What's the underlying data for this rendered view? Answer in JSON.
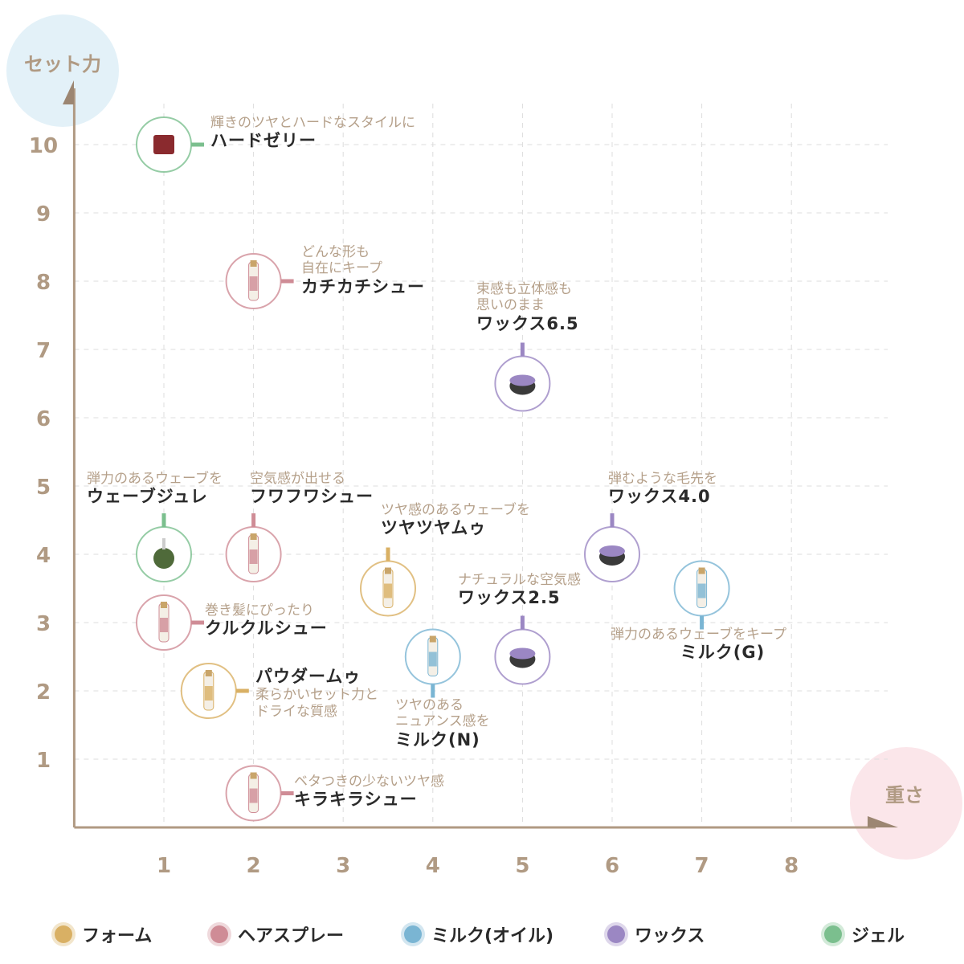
{
  "chart_data": {
    "type": "scatter",
    "xlabel": "重さ",
    "ylabel": "セット力",
    "xlim": [
      0,
      8.8
    ],
    "ylim": [
      0,
      10.8
    ],
    "x_ticks": [
      "1",
      "2",
      "3",
      "4",
      "5",
      "6",
      "7",
      "8"
    ],
    "y_ticks": [
      "1",
      "2",
      "3",
      "4",
      "5",
      "6",
      "7",
      "8",
      "9",
      "10"
    ],
    "grid": true,
    "legend_position": "bottom",
    "categories": [
      {
        "key": "foam",
        "name": "フォーム",
        "color": "#d9b064"
      },
      {
        "key": "spray",
        "name": "ヘアスプレー",
        "color": "#cf8c96"
      },
      {
        "key": "milk",
        "name": "ミルク(オイル)",
        "color": "#7ab5d3"
      },
      {
        "key": "wax",
        "name": "ワックス",
        "color": "#9b87c3"
      },
      {
        "key": "gel",
        "name": "ジェル",
        "color": "#7bbf8e"
      }
    ],
    "points": [
      {
        "name": "ハードゼリー",
        "desc": "輝きのツヤとハードなスタイルに",
        "x": 1,
        "y": 10,
        "category": "gel"
      },
      {
        "name": "カチカチシュー",
        "desc": "どんな形も\n自在にキープ",
        "x": 2,
        "y": 8,
        "category": "spray"
      },
      {
        "name": "ワックス6.5",
        "desc": "束感も立体感も\n思いのまま",
        "x": 5,
        "y": 6.5,
        "category": "wax"
      },
      {
        "name": "ウェーブジュレ",
        "desc": "弾力のあるウェーブを",
        "x": 1,
        "y": 4,
        "category": "gel"
      },
      {
        "name": "フワフワシュー",
        "desc": "空気感が出せる",
        "x": 2,
        "y": 4,
        "category": "spray"
      },
      {
        "name": "ツヤツヤムゥ",
        "desc": "ツヤ感のあるウェーブを",
        "x": 3.5,
        "y": 3.5,
        "category": "foam"
      },
      {
        "name": "ワックス4.0",
        "desc": "弾むような毛先を",
        "x": 6,
        "y": 4,
        "category": "wax"
      },
      {
        "name": "ミルク(G)",
        "desc": "弾力のあるウェーブをキープ",
        "x": 7,
        "y": 3.5,
        "category": "milk"
      },
      {
        "name": "ワックス2.5",
        "desc": "ナチュラルな空気感",
        "x": 5,
        "y": 2.5,
        "category": "wax"
      },
      {
        "name": "クルクルシュー",
        "desc": "巻き髪にぴったり",
        "x": 1,
        "y": 3,
        "category": "spray"
      },
      {
        "name": "ミルク(N)",
        "desc": "ツヤのある\nニュアンス感を",
        "x": 4,
        "y": 2.5,
        "category": "milk"
      },
      {
        "name": "パウダームゥ",
        "desc": "柔らかいセット力と\nドライな質感",
        "x": 1.5,
        "y": 2,
        "category": "foam"
      },
      {
        "name": "キラキラシュー",
        "desc": "ベタつきの少ないツヤ感",
        "x": 2,
        "y": 0.5,
        "category": "spray"
      }
    ]
  }
}
